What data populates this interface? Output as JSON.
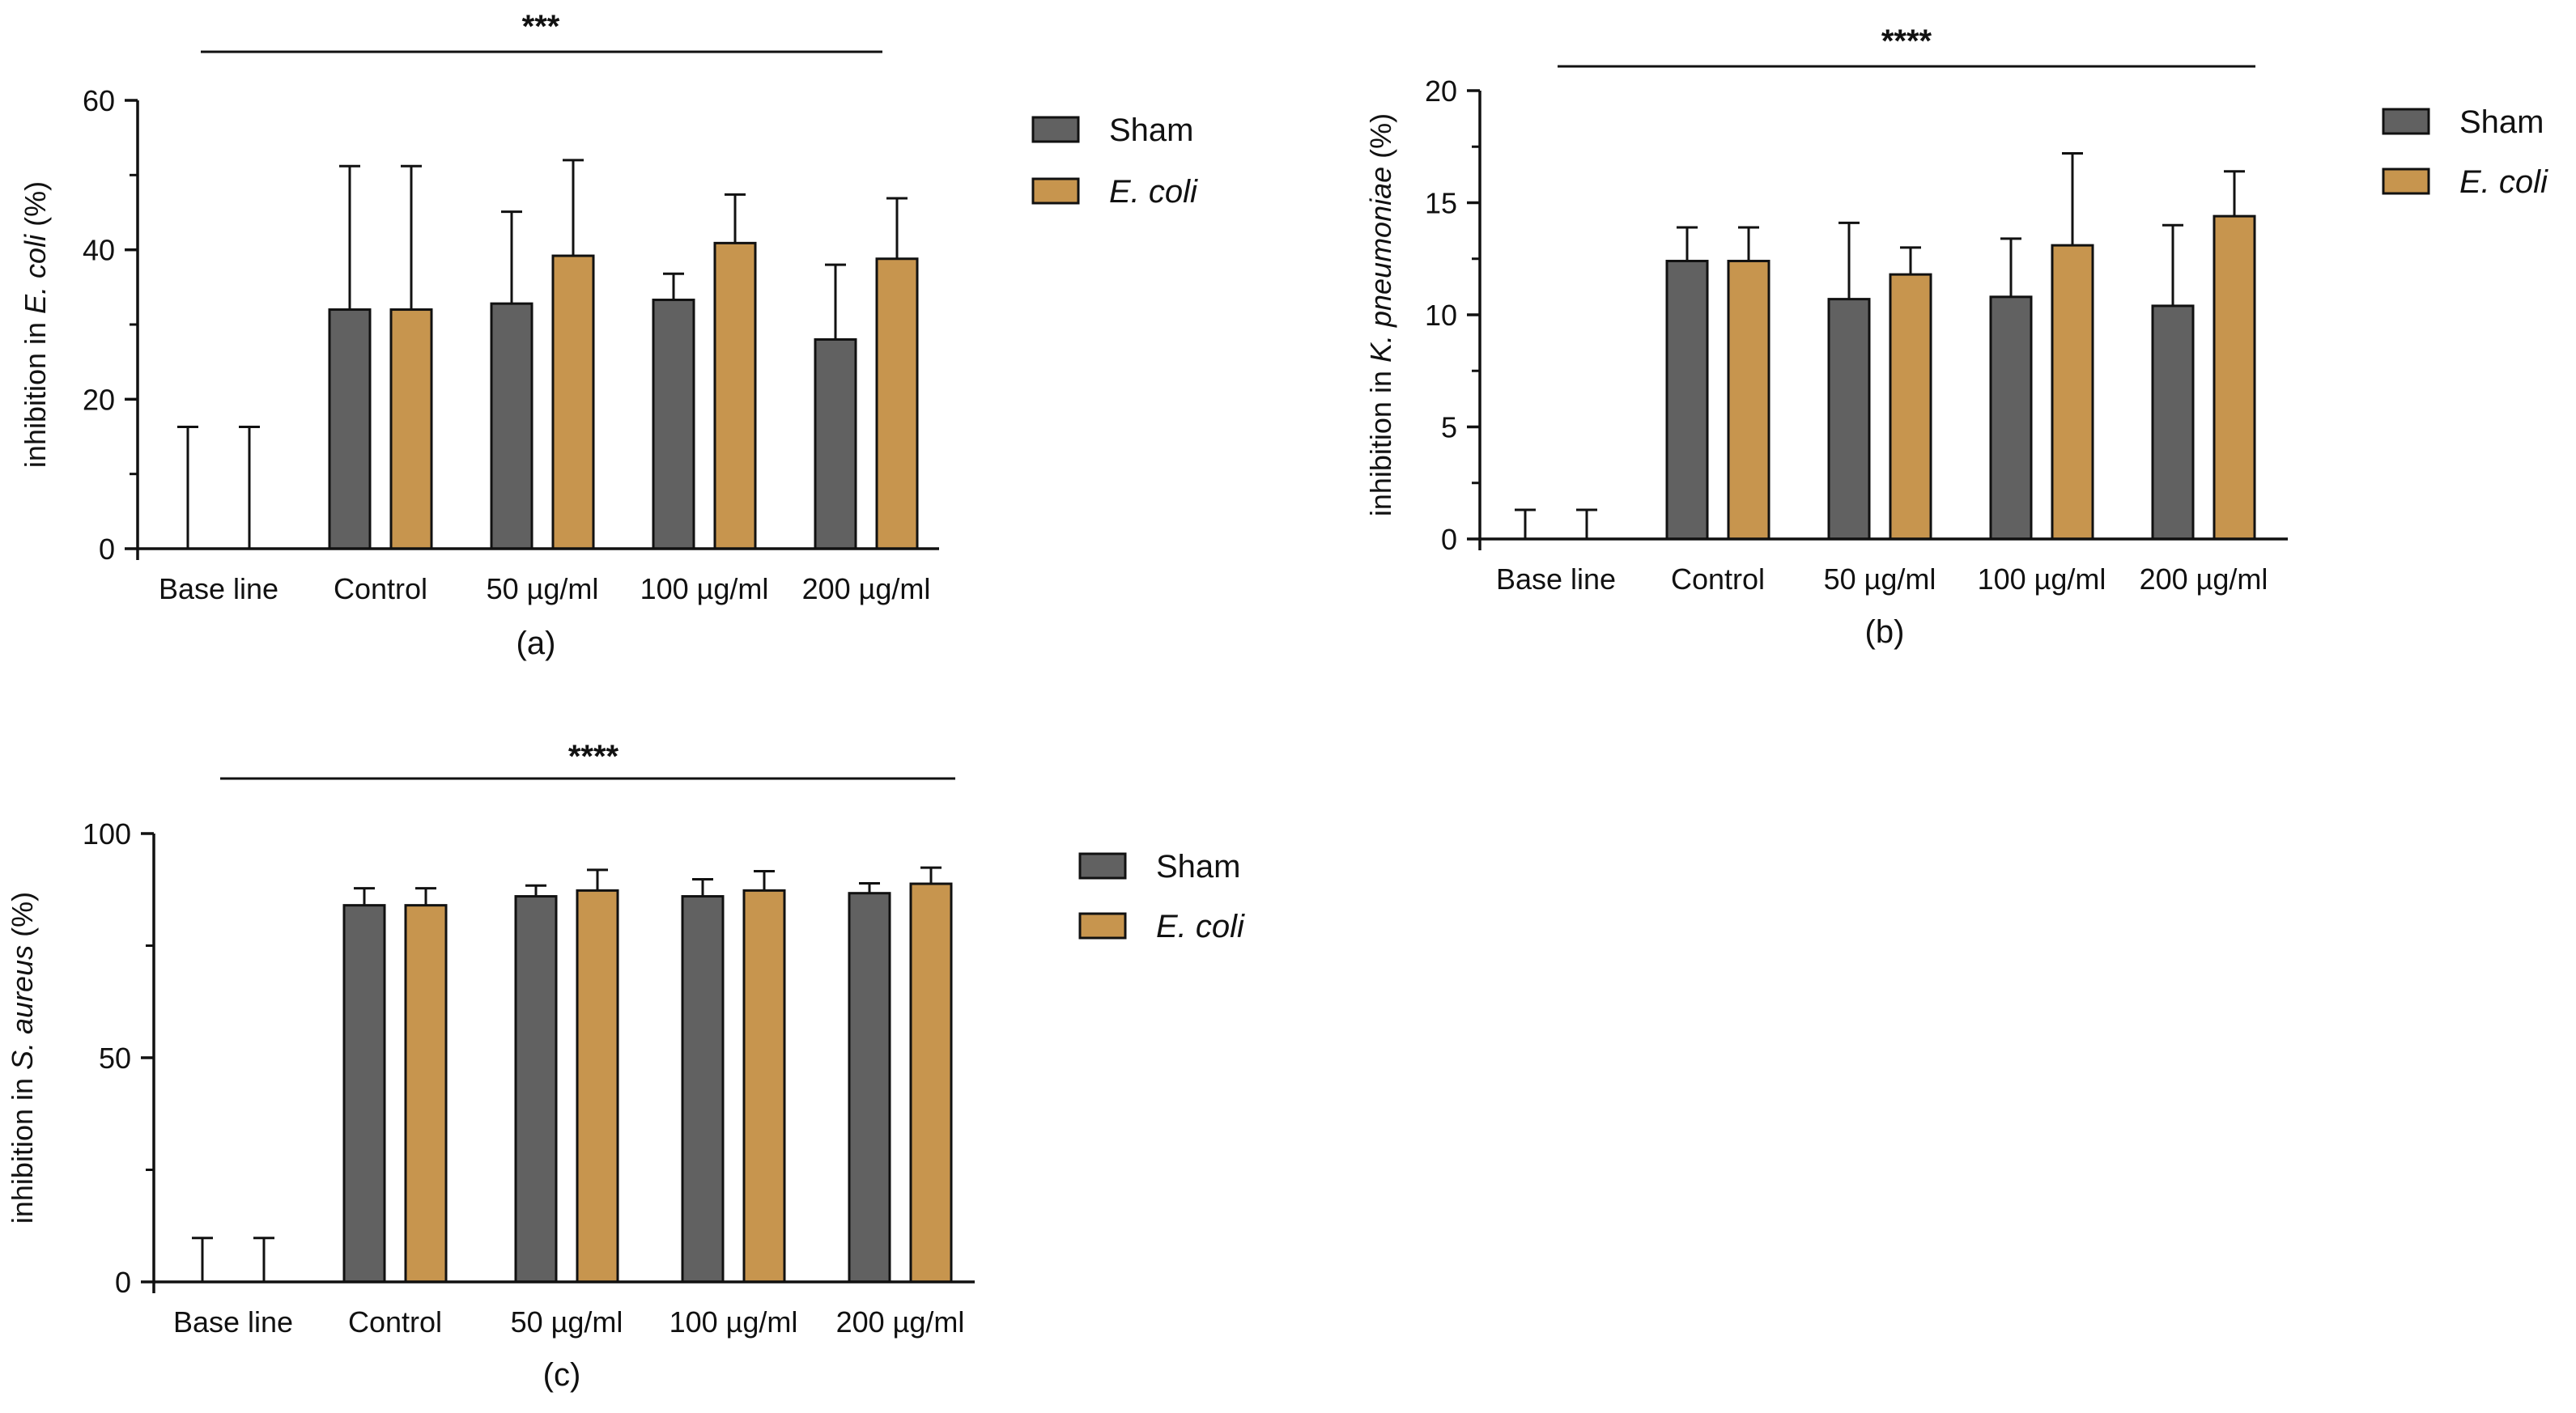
{
  "colors": {
    "sham": "#616161",
    "ecoli": "#c7954e",
    "axis": "#111111"
  },
  "chart_data": [
    {
      "type": "bar",
      "panel_label": "(a)",
      "ylabel_prefix": "inhibition in ",
      "ylabel_species": "E. coli",
      "ylabel_suffix": " (%)",
      "ylim": [
        0,
        60
      ],
      "yticks": [
        0,
        20,
        40,
        60
      ],
      "categories": [
        "Base line",
        "Control",
        "50 µg/ml",
        "100 µg/ml",
        "200 µg/ml"
      ],
      "series": [
        {
          "name": "Sham",
          "italic": false,
          "values": [
            0,
            32,
            32.8,
            33.3,
            28
          ],
          "errors": [
            16.3,
            19.2,
            12.3,
            3.5,
            10
          ]
        },
        {
          "name": "E. coli",
          "italic": true,
          "values": [
            0,
            32,
            39.2,
            40.9,
            38.8
          ],
          "errors": [
            16.3,
            19.2,
            12.8,
            6.5,
            8.1
          ]
        }
      ],
      "significance": "***"
    },
    {
      "type": "bar",
      "panel_label": "(b)",
      "ylabel_prefix": "inhibition in ",
      "ylabel_species": "K. pneumoniae",
      "ylabel_suffix": " (%)",
      "ylim": [
        0,
        20
      ],
      "yticks": [
        0,
        5,
        10,
        15,
        20
      ],
      "categories": [
        "Base line",
        "Control",
        "50 µg/ml",
        "100 µg/ml",
        "200 µg/ml"
      ],
      "series": [
        {
          "name": "Sham",
          "italic": false,
          "values": [
            0,
            12.4,
            10.7,
            10.8,
            10.4
          ],
          "errors": [
            1.3,
            1.5,
            3.4,
            2.6,
            3.6
          ]
        },
        {
          "name": "E. coli",
          "italic": true,
          "values": [
            0,
            12.4,
            11.8,
            13.1,
            14.4
          ],
          "errors": [
            1.3,
            1.5,
            1.2,
            4.1,
            2
          ]
        }
      ],
      "significance": "****"
    },
    {
      "type": "bar",
      "panel_label": "(c)",
      "ylabel_prefix": "inhibition in ",
      "ylabel_species": "S. aureus",
      "ylabel_suffix": " (%)",
      "ylim": [
        0,
        100
      ],
      "yticks": [
        0,
        50,
        100
      ],
      "categories": [
        "Base line",
        "Control",
        "50 µg/ml",
        "100 µg/ml",
        "200 µg/ml"
      ],
      "series": [
        {
          "name": "Sham",
          "italic": false,
          "values": [
            0,
            84,
            86,
            86,
            86.7
          ],
          "errors": [
            9.8,
            3.8,
            2.4,
            3.8,
            2.2
          ]
        },
        {
          "name": "E. coli",
          "italic": true,
          "values": [
            0,
            84,
            87.3,
            87.3,
            88.8
          ],
          "errors": [
            9.8,
            3.8,
            4.6,
            4.3,
            3.6
          ]
        }
      ],
      "significance": "****"
    }
  ]
}
